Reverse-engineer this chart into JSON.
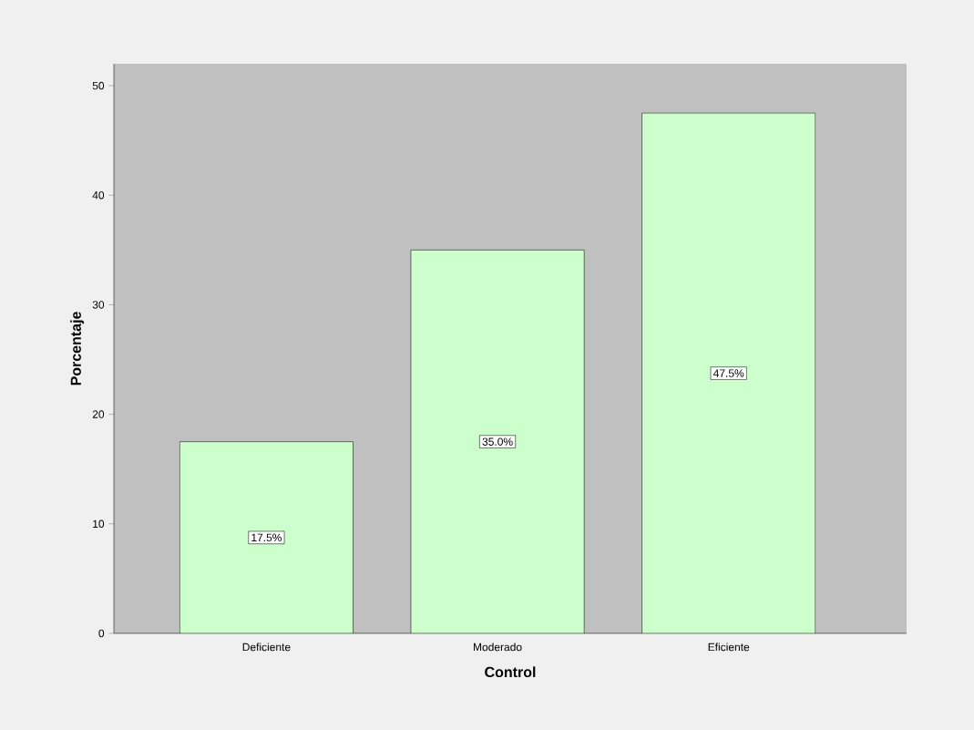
{
  "chart_data": {
    "type": "bar",
    "xlabel": "Control",
    "ylabel": "Porcentaje",
    "categories": [
      "Deficiente",
      "Moderado",
      "Eficiente"
    ],
    "values": [
      17.5,
      35.0,
      47.5
    ],
    "color": "#ccffcc",
    "value_labels": [
      "17.5%",
      "35.0%",
      "47.5%"
    ],
    "ylim": [
      0,
      52
    ],
    "yticks": [
      0,
      10,
      20,
      30,
      40,
      50
    ]
  }
}
